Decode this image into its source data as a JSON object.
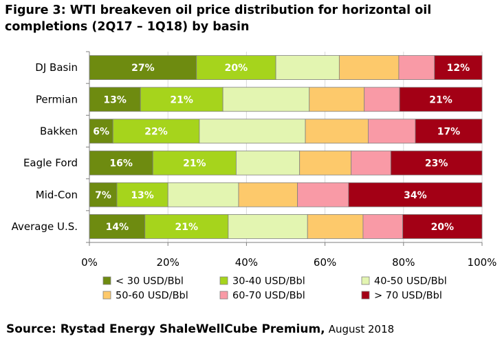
{
  "title_lines": [
    "Figure 3: WTI breakeven oil price distribution for horizontal oil",
    "completions (2Q17 – 1Q18) by basin"
  ],
  "source": {
    "bold": "Source: Rystad Energy ShaleWellCube Premium,",
    "date": "August 2018"
  },
  "chart_data": {
    "type": "bar",
    "orientation": "horizontal",
    "stacked": true,
    "categories": [
      "DJ Basin",
      "Permian",
      "Bakken",
      "Eagle Ford",
      "Mid-Con",
      "Average U.S."
    ],
    "xlim": [
      0,
      100
    ],
    "xticks": [
      "0%",
      "20%",
      "40%",
      "60%",
      "80%",
      "100%"
    ],
    "grid": true,
    "legend_position": "bottom",
    "series": [
      {
        "name": "< 30 USD/Bbl",
        "color": "#6e8b10",
        "values": [
          27,
          13,
          6,
          16,
          7,
          14
        ],
        "labels": [
          "27%",
          "13%",
          "6%",
          "16%",
          "7%",
          "14%"
        ]
      },
      {
        "name": "30-40 USD/Bbl",
        "color": "#a6d41c",
        "values": [
          20,
          21,
          22,
          21,
          13,
          21
        ],
        "labels": [
          "20%",
          "21%",
          "22%",
          "21%",
          "13%",
          "21%"
        ]
      },
      {
        "name": "40-50 USD/Bbl",
        "color": "#e3f5b1",
        "values": [
          16,
          22,
          27,
          16,
          18,
          20
        ],
        "labels": [
          "",
          "",
          "",
          "",
          "",
          ""
        ]
      },
      {
        "name": "50-60 USD/Bbl",
        "color": "#fdc96b",
        "values": [
          15,
          14,
          16,
          13,
          15,
          14
        ],
        "labels": [
          "",
          "",
          "",
          "",
          "",
          ""
        ]
      },
      {
        "name": "60-70 USD/Bbl",
        "color": "#f99aa6",
        "values": [
          9,
          9,
          12,
          10,
          13,
          10
        ],
        "labels": [
          "",
          "",
          "",
          "",
          "",
          ""
        ]
      },
      {
        "name": "> 70 USD/Bbl",
        "color": "#a30015",
        "values": [
          12,
          21,
          17,
          23,
          34,
          20
        ],
        "labels": [
          "12%",
          "21%",
          "17%",
          "23%",
          "34%",
          "20%"
        ]
      }
    ]
  }
}
